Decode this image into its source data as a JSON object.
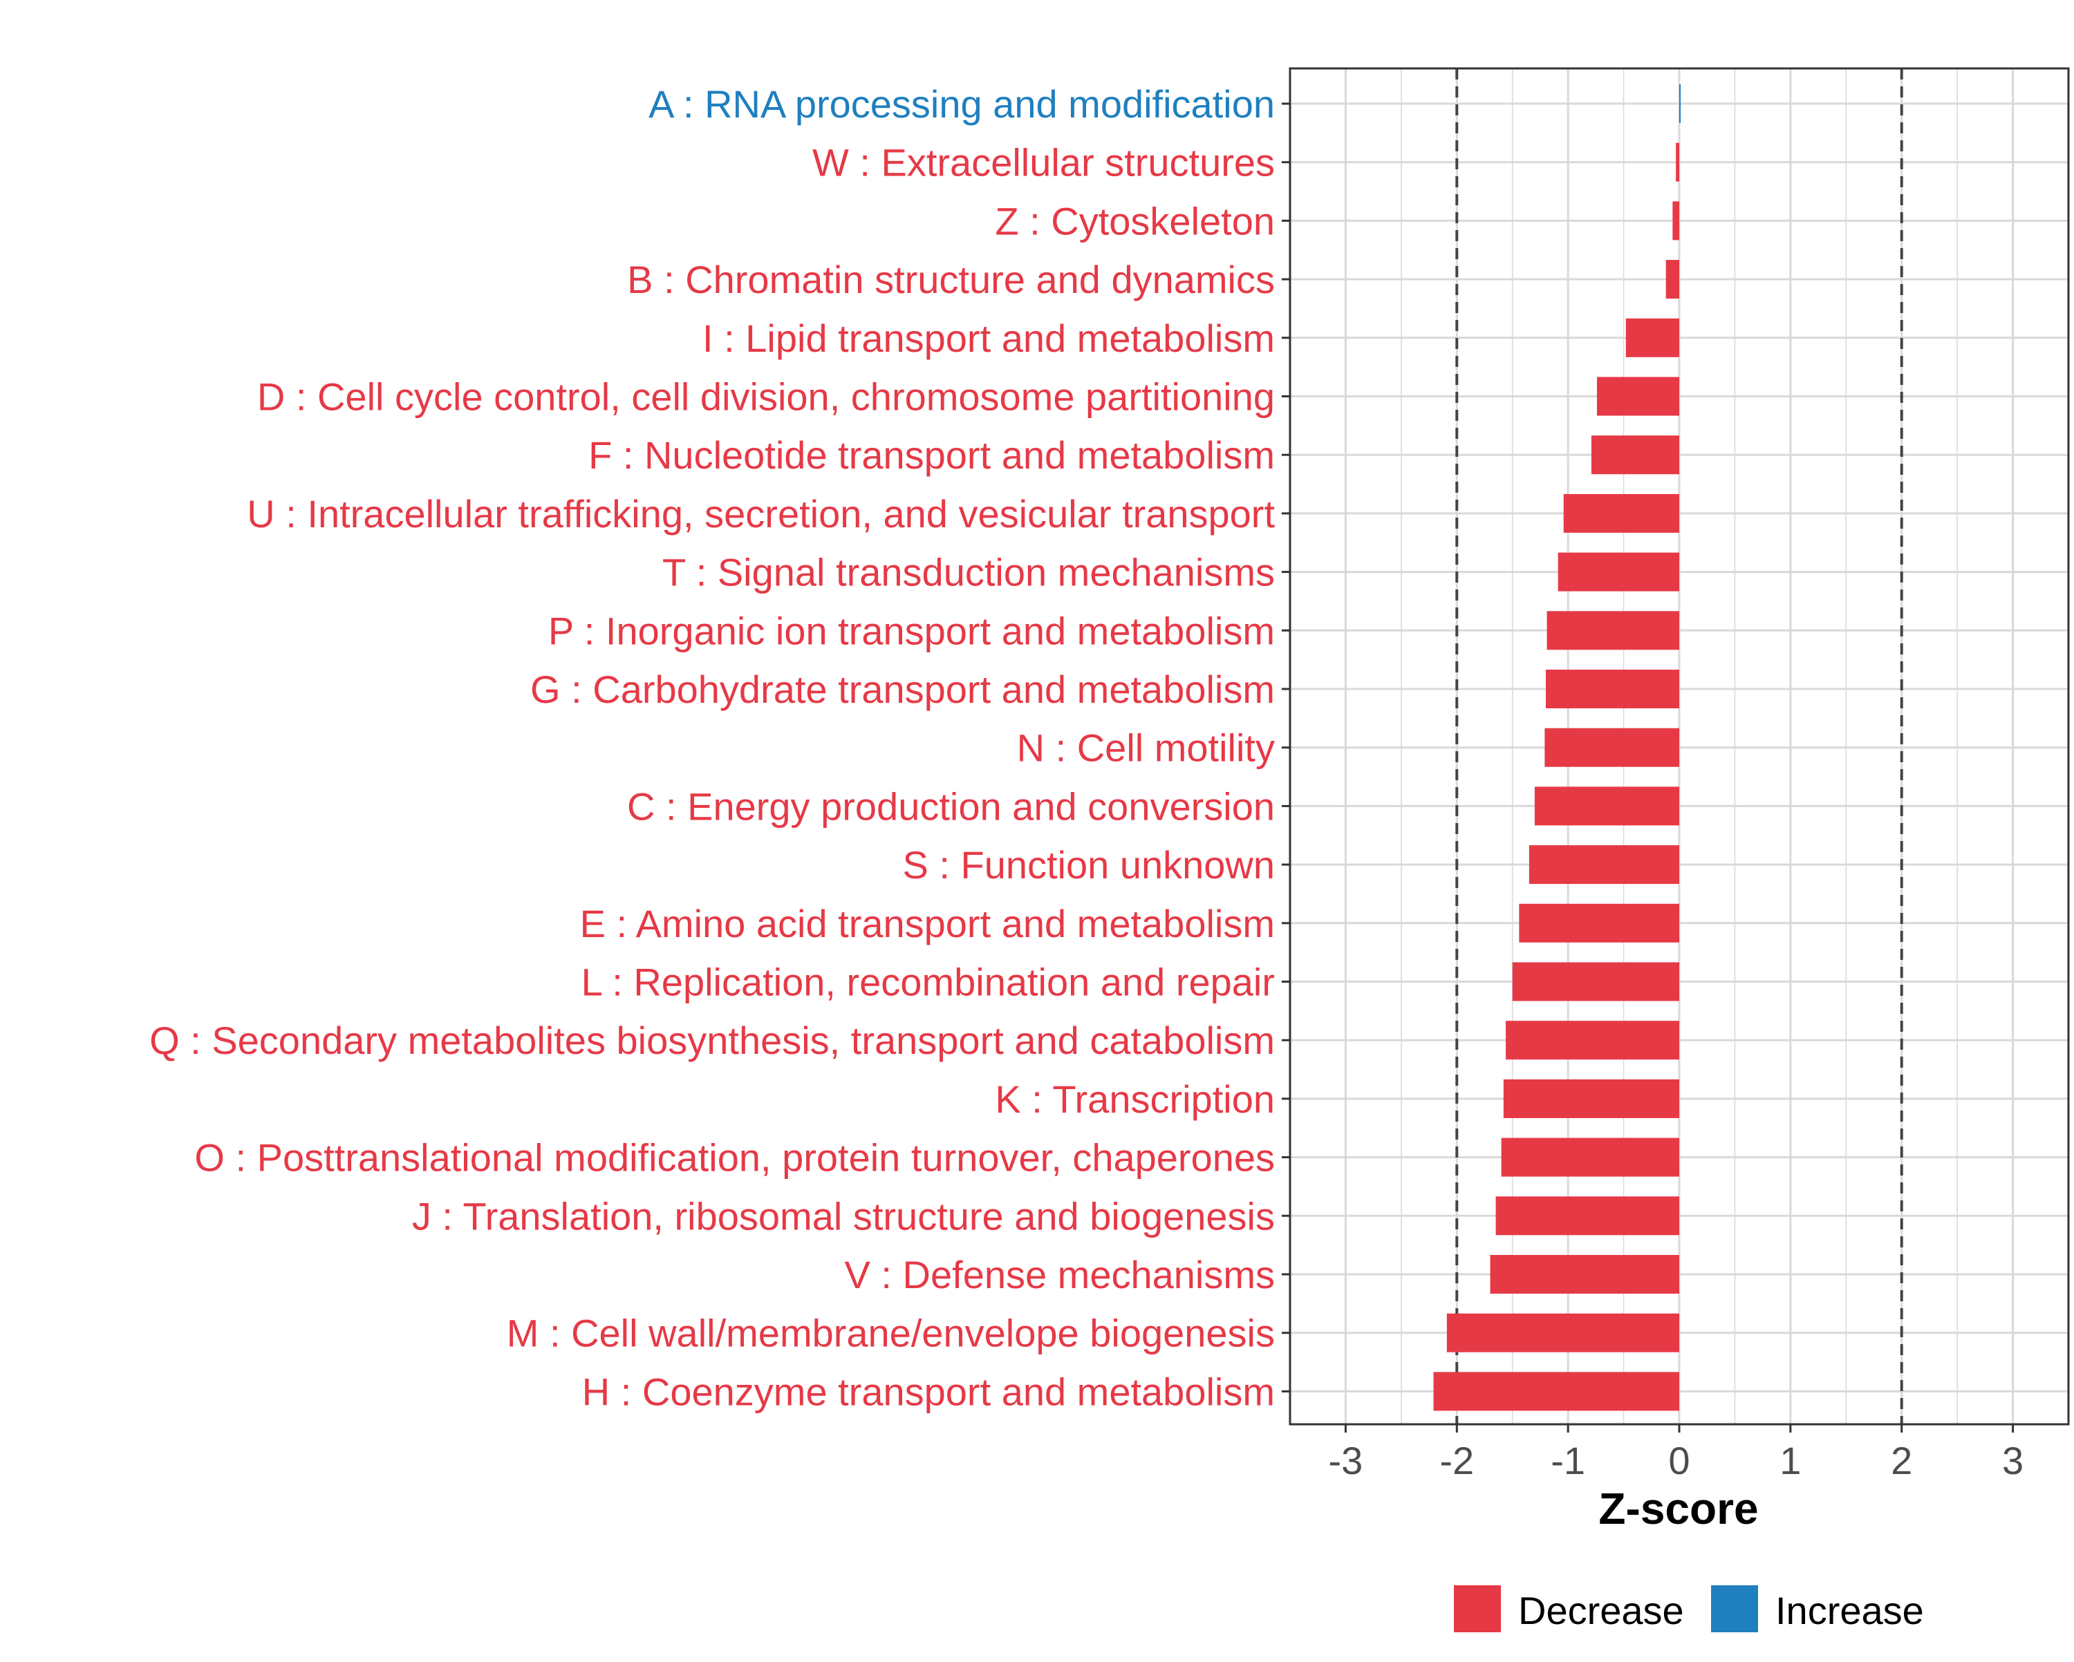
{
  "chart_data": {
    "type": "bar",
    "orientation": "horizontal",
    "xlabel": "Z-score",
    "xlim": [
      -3.5,
      3.5
    ],
    "xticks": [
      "-3",
      "-2",
      "-1",
      "0",
      "1",
      "2",
      "3"
    ],
    "threshold_lines": [
      -2,
      2
    ],
    "grid": true,
    "categories": [
      {
        "label": "A : RNA processing and modification",
        "value": 0.01,
        "direction": "Increase"
      },
      {
        "label": "W : Extracellular structures",
        "value": -0.03,
        "direction": "Decrease"
      },
      {
        "label": "Z : Cytoskeleton",
        "value": -0.06,
        "direction": "Decrease"
      },
      {
        "label": "B : Chromatin structure and dynamics",
        "value": -0.12,
        "direction": "Decrease"
      },
      {
        "label": "I : Lipid transport and metabolism",
        "value": -0.48,
        "direction": "Decrease"
      },
      {
        "label": "D : Cell cycle control, cell division, chromosome partitioning",
        "value": -0.74,
        "direction": "Decrease"
      },
      {
        "label": "F : Nucleotide transport and metabolism",
        "value": -0.79,
        "direction": "Decrease"
      },
      {
        "label": "U : Intracellular trafficking, secretion, and vesicular transport",
        "value": -1.04,
        "direction": "Decrease"
      },
      {
        "label": "T : Signal transduction mechanisms",
        "value": -1.09,
        "direction": "Decrease"
      },
      {
        "label": "P : Inorganic ion transport and metabolism",
        "value": -1.19,
        "direction": "Decrease"
      },
      {
        "label": "G : Carbohydrate transport and metabolism",
        "value": -1.2,
        "direction": "Decrease"
      },
      {
        "label": "N : Cell motility",
        "value": -1.21,
        "direction": "Decrease"
      },
      {
        "label": "C : Energy production and conversion",
        "value": -1.3,
        "direction": "Decrease"
      },
      {
        "label": "S : Function unknown",
        "value": -1.35,
        "direction": "Decrease"
      },
      {
        "label": "E : Amino acid transport and metabolism",
        "value": -1.44,
        "direction": "Decrease"
      },
      {
        "label": "L : Replication, recombination and repair",
        "value": -1.5,
        "direction": "Decrease"
      },
      {
        "label": "Q : Secondary metabolites biosynthesis, transport and catabolism",
        "value": -1.56,
        "direction": "Decrease"
      },
      {
        "label": "K : Transcription",
        "value": -1.58,
        "direction": "Decrease"
      },
      {
        "label": "O : Posttranslational modification, protein turnover, chaperones",
        "value": -1.6,
        "direction": "Decrease"
      },
      {
        "label": "J : Translation, ribosomal structure and biogenesis",
        "value": -1.65,
        "direction": "Decrease"
      },
      {
        "label": "V : Defense mechanisms",
        "value": -1.7,
        "direction": "Decrease"
      },
      {
        "label": "M : Cell wall/membrane/envelope biogenesis",
        "value": -2.09,
        "direction": "Decrease"
      },
      {
        "label": "H : Coenzyme transport and metabolism",
        "value": -2.21,
        "direction": "Decrease"
      }
    ],
    "legend": {
      "position": "bottom",
      "entries": [
        {
          "label": "Decrease",
          "color": "#E63946"
        },
        {
          "label": "Increase",
          "color": "#1F7FBF"
        }
      ]
    }
  },
  "colors": {
    "decrease": "#E63946",
    "increase": "#1F7FBF",
    "grid": "#D9D9D9",
    "axis_text": "#4D4D4D"
  }
}
